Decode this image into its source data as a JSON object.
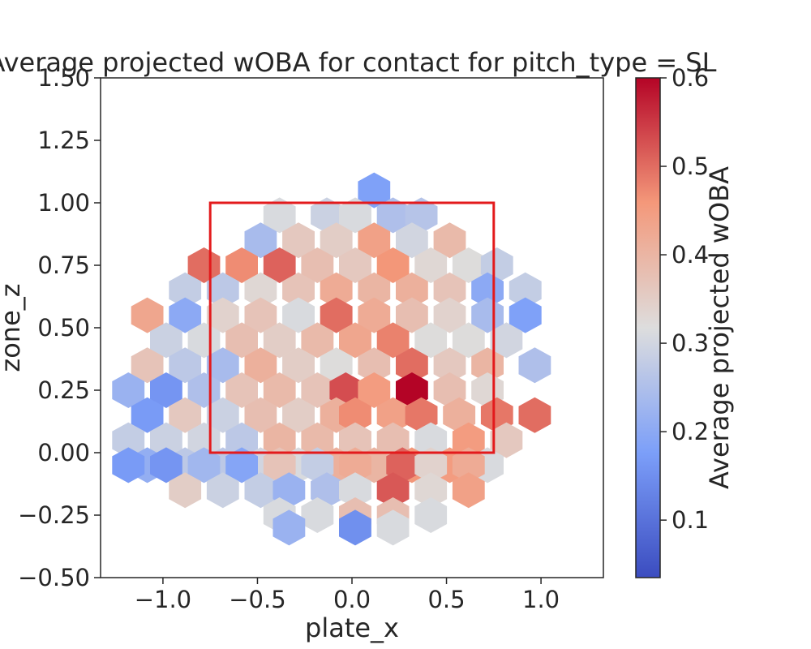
{
  "chart_data": {
    "type": "heatmap",
    "subtype": "hexbin",
    "title": "Average projected wOBA for contact for pitch_type = SL",
    "xlabel": "plate_x",
    "ylabel": "zone_z",
    "xlim": [
      -1.33,
      1.33
    ],
    "ylim": [
      -0.5,
      1.5
    ],
    "xticks": [
      -1.0,
      -0.5,
      0.0,
      0.5,
      1.0
    ],
    "xtick_labels": [
      "−1.0",
      "−0.5",
      "0.0",
      "0.5",
      "1.0"
    ],
    "yticks": [
      -0.5,
      -0.25,
      0.0,
      0.25,
      0.5,
      0.75,
      1.0,
      1.25,
      1.5
    ],
    "ytick_labels": [
      "−0.50",
      "−0.25",
      "0.00",
      "0.25",
      "0.50",
      "0.75",
      "1.00",
      "1.25",
      "1.50"
    ],
    "colorbar": {
      "label": "Average projected wOBA",
      "colormap": "coolwarm",
      "range": [
        0.035,
        0.6
      ],
      "ticks": [
        0.1,
        0.2,
        0.3,
        0.4,
        0.5,
        0.6
      ],
      "tick_labels": [
        "0.1",
        "0.2",
        "0.3",
        "0.4",
        "0.5",
        "0.6"
      ]
    },
    "strike_zone": {
      "x": [
        -0.75,
        0.75
      ],
      "z": [
        0.0,
        1.0
      ],
      "color": "#e31a1c"
    },
    "grid": false,
    "hexbins": [
      {
        "x": 0.117,
        "z": 1.05,
        "v": 0.18
      },
      {
        "x": -0.383,
        "z": 0.95,
        "v": 0.31
      },
      {
        "x": -0.133,
        "z": 0.95,
        "v": 0.29
      },
      {
        "x": 0.017,
        "z": 0.95,
        "v": 0.31
      },
      {
        "x": 0.217,
        "z": 0.95,
        "v": 0.25
      },
      {
        "x": 0.367,
        "z": 0.95,
        "v": 0.26
      },
      {
        "x": -0.483,
        "z": 0.85,
        "v": 0.24
      },
      {
        "x": -0.283,
        "z": 0.85,
        "v": 0.36
      },
      {
        "x": -0.083,
        "z": 0.85,
        "v": 0.35
      },
      {
        "x": 0.117,
        "z": 0.85,
        "v": 0.44
      },
      {
        "x": 0.317,
        "z": 0.85,
        "v": 0.3
      },
      {
        "x": 0.517,
        "z": 0.85,
        "v": 0.39
      },
      {
        "x": -0.783,
        "z": 0.75,
        "v": 0.5
      },
      {
        "x": -0.583,
        "z": 0.75,
        "v": 0.47
      },
      {
        "x": -0.383,
        "z": 0.75,
        "v": 0.51
      },
      {
        "x": -0.183,
        "z": 0.75,
        "v": 0.38
      },
      {
        "x": 0.017,
        "z": 0.75,
        "v": 0.36
      },
      {
        "x": 0.217,
        "z": 0.75,
        "v": 0.46
      },
      {
        "x": 0.417,
        "z": 0.75,
        "v": 0.33
      },
      {
        "x": 0.617,
        "z": 0.75,
        "v": 0.32
      },
      {
        "x": 0.767,
        "z": 0.75,
        "v": 0.28
      },
      {
        "x": -0.883,
        "z": 0.65,
        "v": 0.28
      },
      {
        "x": -0.683,
        "z": 0.65,
        "v": 0.27
      },
      {
        "x": -0.483,
        "z": 0.65,
        "v": 0.33
      },
      {
        "x": -0.283,
        "z": 0.65,
        "v": 0.37
      },
      {
        "x": -0.083,
        "z": 0.65,
        "v": 0.42
      },
      {
        "x": 0.117,
        "z": 0.65,
        "v": 0.4
      },
      {
        "x": 0.317,
        "z": 0.65,
        "v": 0.41
      },
      {
        "x": 0.517,
        "z": 0.65,
        "v": 0.37
      },
      {
        "x": 0.717,
        "z": 0.65,
        "v": 0.2
      },
      {
        "x": 0.917,
        "z": 0.65,
        "v": 0.28
      },
      {
        "x": -1.083,
        "z": 0.55,
        "v": 0.43
      },
      {
        "x": -0.883,
        "z": 0.55,
        "v": 0.2
      },
      {
        "x": -0.683,
        "z": 0.55,
        "v": 0.34
      },
      {
        "x": -0.483,
        "z": 0.55,
        "v": 0.37
      },
      {
        "x": -0.283,
        "z": 0.55,
        "v": 0.31
      },
      {
        "x": -0.083,
        "z": 0.55,
        "v": 0.5
      },
      {
        "x": 0.117,
        "z": 0.55,
        "v": 0.42
      },
      {
        "x": 0.317,
        "z": 0.55,
        "v": 0.38
      },
      {
        "x": 0.517,
        "z": 0.55,
        "v": 0.34
      },
      {
        "x": 0.717,
        "z": 0.55,
        "v": 0.24
      },
      {
        "x": 0.917,
        "z": 0.55,
        "v": 0.18
      },
      {
        "x": -0.983,
        "z": 0.45,
        "v": 0.29
      },
      {
        "x": -0.783,
        "z": 0.45,
        "v": 0.31
      },
      {
        "x": -0.583,
        "z": 0.45,
        "v": 0.38
      },
      {
        "x": -0.383,
        "z": 0.45,
        "v": 0.35
      },
      {
        "x": -0.183,
        "z": 0.45,
        "v": 0.39
      },
      {
        "x": 0.017,
        "z": 0.45,
        "v": 0.43
      },
      {
        "x": 0.217,
        "z": 0.45,
        "v": 0.48
      },
      {
        "x": 0.417,
        "z": 0.45,
        "v": 0.32
      },
      {
        "x": 0.617,
        "z": 0.45,
        "v": 0.32
      },
      {
        "x": 0.817,
        "z": 0.45,
        "v": 0.3
      },
      {
        "x": -1.083,
        "z": 0.35,
        "v": 0.37
      },
      {
        "x": -0.883,
        "z": 0.35,
        "v": 0.27
      },
      {
        "x": -0.683,
        "z": 0.35,
        "v": 0.24
      },
      {
        "x": -0.483,
        "z": 0.35,
        "v": 0.41
      },
      {
        "x": -0.283,
        "z": 0.35,
        "v": 0.35
      },
      {
        "x": -0.083,
        "z": 0.35,
        "v": 0.32
      },
      {
        "x": 0.117,
        "z": 0.35,
        "v": 0.38
      },
      {
        "x": 0.317,
        "z": 0.35,
        "v": 0.5
      },
      {
        "x": 0.517,
        "z": 0.35,
        "v": 0.36
      },
      {
        "x": 0.717,
        "z": 0.35,
        "v": 0.4
      },
      {
        "x": 0.967,
        "z": 0.35,
        "v": 0.25
      },
      {
        "x": -1.183,
        "z": 0.25,
        "v": 0.22
      },
      {
        "x": -0.983,
        "z": 0.25,
        "v": 0.16
      },
      {
        "x": -0.783,
        "z": 0.25,
        "v": 0.25
      },
      {
        "x": -0.583,
        "z": 0.25,
        "v": 0.37
      },
      {
        "x": -0.383,
        "z": 0.25,
        "v": 0.39
      },
      {
        "x": -0.183,
        "z": 0.25,
        "v": 0.37
      },
      {
        "x": -0.033,
        "z": 0.25,
        "v": 0.53
      },
      {
        "x": 0.117,
        "z": 0.25,
        "v": 0.45
      },
      {
        "x": 0.317,
        "z": 0.25,
        "v": 0.6
      },
      {
        "x": 0.517,
        "z": 0.25,
        "v": 0.38
      },
      {
        "x": 0.717,
        "z": 0.25,
        "v": 0.33
      },
      {
        "x": -1.083,
        "z": 0.15,
        "v": 0.17
      },
      {
        "x": -0.883,
        "z": 0.15,
        "v": 0.36
      },
      {
        "x": -0.683,
        "z": 0.15,
        "v": 0.29
      },
      {
        "x": -0.483,
        "z": 0.15,
        "v": 0.38
      },
      {
        "x": -0.283,
        "z": 0.15,
        "v": 0.35
      },
      {
        "x": -0.083,
        "z": 0.15,
        "v": 0.41
      },
      {
        "x": 0.017,
        "z": 0.15,
        "v": 0.47
      },
      {
        "x": 0.217,
        "z": 0.15,
        "v": 0.44
      },
      {
        "x": 0.367,
        "z": 0.15,
        "v": 0.49
      },
      {
        "x": 0.567,
        "z": 0.15,
        "v": 0.41
      },
      {
        "x": 0.767,
        "z": 0.15,
        "v": 0.49
      },
      {
        "x": 0.967,
        "z": 0.15,
        "v": 0.5
      },
      {
        "x": -1.183,
        "z": 0.05,
        "v": 0.28
      },
      {
        "x": -0.983,
        "z": 0.05,
        "v": 0.29
      },
      {
        "x": -0.783,
        "z": 0.05,
        "v": 0.3
      },
      {
        "x": -0.583,
        "z": 0.05,
        "v": 0.27
      },
      {
        "x": -0.383,
        "z": 0.05,
        "v": 0.4
      },
      {
        "x": -0.183,
        "z": 0.05,
        "v": 0.39
      },
      {
        "x": 0.017,
        "z": 0.05,
        "v": 0.37
      },
      {
        "x": 0.217,
        "z": 0.05,
        "v": 0.38
      },
      {
        "x": 0.417,
        "z": 0.05,
        "v": 0.31
      },
      {
        "x": 0.617,
        "z": 0.05,
        "v": 0.45
      },
      {
        "x": 0.817,
        "z": 0.05,
        "v": 0.36
      },
      {
        "x": -1.083,
        "z": -0.05,
        "v": 0.21
      },
      {
        "x": -0.883,
        "z": -0.05,
        "v": 0.27
      },
      {
        "x": -0.683,
        "z": -0.05,
        "v": 0.27
      },
      {
        "x": -0.483,
        "z": -0.05,
        "v": 0.3
      },
      {
        "x": -0.283,
        "z": -0.05,
        "v": 0.31
      },
      {
        "x": -0.083,
        "z": -0.05,
        "v": 0.41
      },
      {
        "x": 0.117,
        "z": -0.05,
        "v": 0.4
      },
      {
        "x": 0.317,
        "z": -0.05,
        "v": 0.46
      },
      {
        "x": 0.517,
        "z": -0.05,
        "v": 0.45
      },
      {
        "x": 0.717,
        "z": -0.05,
        "v": 0.31
      },
      {
        "x": -1.183,
        "z": -0.05,
        "v": 0.17
      },
      {
        "x": -0.983,
        "z": -0.05,
        "v": 0.16
      },
      {
        "x": -0.783,
        "z": -0.05,
        "v": 0.23
      },
      {
        "x": -0.583,
        "z": -0.05,
        "v": 0.19
      },
      {
        "x": -0.383,
        "z": -0.05,
        "v": 0.37
      },
      {
        "x": -0.183,
        "z": -0.05,
        "v": 0.28
      },
      {
        "x": 0.017,
        "z": -0.05,
        "v": 0.42
      },
      {
        "x": 0.267,
        "z": -0.05,
        "v": 0.51
      },
      {
        "x": 0.417,
        "z": -0.05,
        "v": 0.34
      },
      {
        "x": 0.617,
        "z": -0.05,
        "v": 0.42
      },
      {
        "x": -0.883,
        "z": -0.15,
        "v": 0.35
      },
      {
        "x": -0.683,
        "z": -0.15,
        "v": 0.29
      },
      {
        "x": -0.483,
        "z": -0.15,
        "v": 0.28
      },
      {
        "x": -0.333,
        "z": -0.15,
        "v": 0.22
      },
      {
        "x": -0.133,
        "z": -0.15,
        "v": 0.25
      },
      {
        "x": 0.017,
        "z": -0.15,
        "v": 0.31
      },
      {
        "x": 0.217,
        "z": -0.15,
        "v": 0.52
      },
      {
        "x": 0.417,
        "z": -0.15,
        "v": 0.33
      },
      {
        "x": 0.617,
        "z": -0.15,
        "v": 0.44
      },
      {
        "x": -0.383,
        "z": -0.25,
        "v": 0.31
      },
      {
        "x": -0.183,
        "z": -0.25,
        "v": 0.31
      },
      {
        "x": 0.017,
        "z": -0.25,
        "v": 0.38
      },
      {
        "x": 0.217,
        "z": -0.25,
        "v": 0.38
      },
      {
        "x": 0.417,
        "z": -0.25,
        "v": 0.31
      },
      {
        "x": -0.333,
        "z": -0.3,
        "v": 0.22
      },
      {
        "x": 0.017,
        "z": -0.3,
        "v": 0.15
      },
      {
        "x": 0.217,
        "z": -0.3,
        "v": 0.31
      }
    ]
  }
}
